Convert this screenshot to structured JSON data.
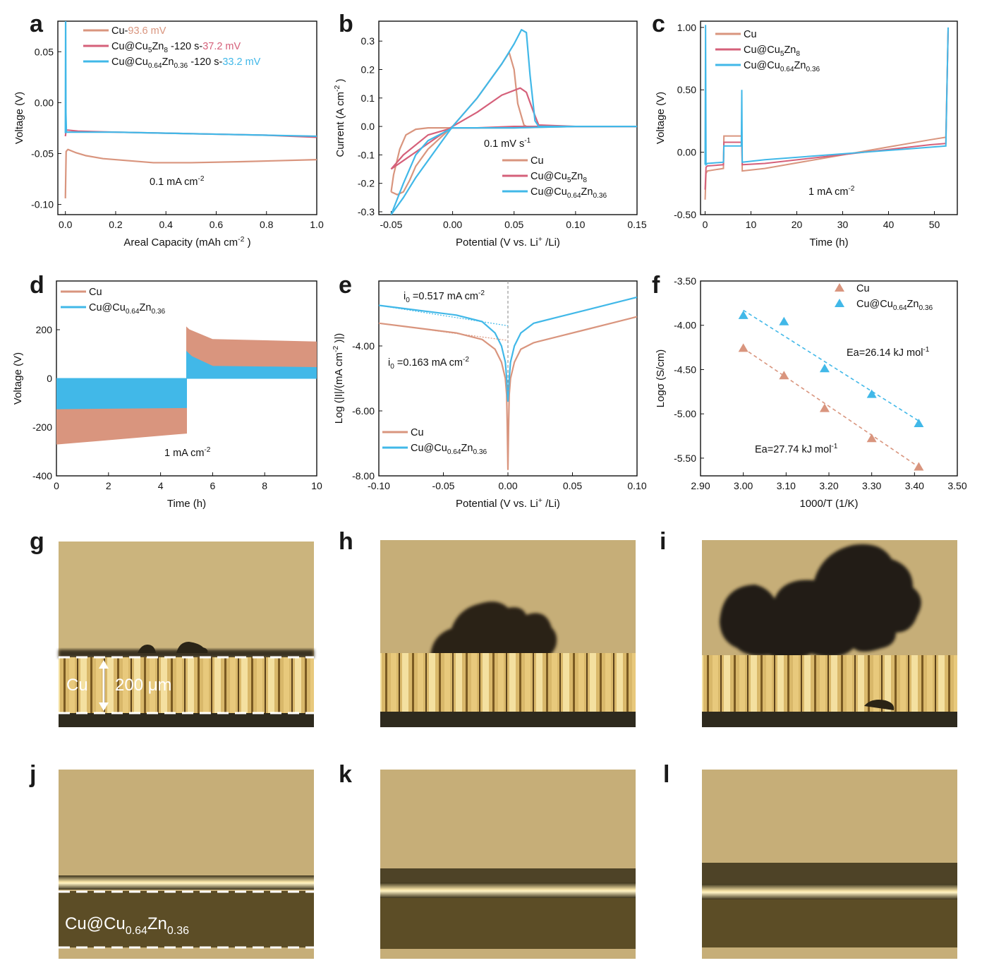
{
  "colors": {
    "cu": "#d9957e",
    "cu5zn8": "#d5607a",
    "cu064": "#41b8e8",
    "axis": "#111111",
    "guide": "#999999"
  },
  "chart_data": [
    {
      "id": "a",
      "panel_label": "a",
      "type": "line",
      "xlabel": "Areal Capacity (mAh cm-2)",
      "ylabel": "Voltage (V)",
      "xlim": [
        -0.03,
        1.0
      ],
      "ylim": [
        -0.11,
        0.08
      ],
      "xticks": [
        "0.0",
        "0.2",
        "0.4",
        "0.6",
        "0.8",
        "1.0"
      ],
      "xtick_values": [
        0,
        0.2,
        0.4,
        0.6,
        0.8,
        1.0
      ],
      "yticks": [
        "0.05",
        "0.00",
        "-0.05",
        "-0.10"
      ],
      "ytick_values": [
        0.05,
        0,
        -0.05,
        -0.1
      ],
      "annotation": "0.1 mA cm-2",
      "legend": [
        {
          "name": "Cu-",
          "value": "93.6 mV",
          "color": "#d9957e"
        },
        {
          "name": "Cu@Cu5Zn8-120 s-",
          "value": "37.2 mV",
          "color": "#d5607a"
        },
        {
          "name": "Cu@Cu0.64Zn0.36-120 s-",
          "value": "33.2 mV",
          "color": "#41b8e8"
        }
      ],
      "series": [
        {
          "name": "Cu",
          "color": "#d9957e",
          "x": [
            0,
            0.003,
            0.01,
            0.02,
            0.04,
            0.08,
            0.15,
            0.25,
            0.35,
            0.5,
            0.7,
            0.85,
            1.0
          ],
          "y": [
            -0.094,
            -0.048,
            -0.046,
            -0.047,
            -0.049,
            -0.052,
            -0.055,
            -0.057,
            -0.059,
            -0.059,
            -0.058,
            -0.057,
            -0.056
          ]
        },
        {
          "name": "Cu@Cu5Zn8",
          "color": "#d5607a",
          "x": [
            0,
            0.003,
            0.01,
            0.05,
            0.2,
            0.4,
            0.6,
            0.8,
            1.0
          ],
          "y": [
            -0.033,
            -0.027,
            -0.027,
            -0.028,
            -0.029,
            -0.03,
            -0.031,
            -0.032,
            -0.034
          ]
        },
        {
          "name": "Cu@Cu0.64Zn0.36",
          "color": "#41b8e8",
          "x": [
            0,
            0.001,
            0.002,
            0.004,
            0.01,
            0.05,
            0.2,
            0.4,
            0.6,
            0.8,
            1.0
          ],
          "y": [
            -0.03,
            0.085,
            -0.01,
            -0.029,
            -0.029,
            -0.029,
            -0.029,
            -0.03,
            -0.031,
            -0.032,
            -0.033
          ]
        }
      ]
    },
    {
      "id": "b",
      "panel_label": "b",
      "type": "line",
      "xlabel": "Potential (V vs. Li+/Li)",
      "ylabel": "Current (A cm-2)",
      "xlim": [
        -0.06,
        0.15
      ],
      "ylim": [
        -0.31,
        0.37
      ],
      "xticks": [
        "-0.05",
        "0.00",
        "0.05",
        "0.10",
        "0.15"
      ],
      "xtick_values": [
        -0.05,
        0,
        0.05,
        0.1,
        0.15
      ],
      "yticks": [
        "0.3",
        "0.2",
        "0.1",
        "0.0",
        "-0.1",
        "-0.2",
        "-0.3"
      ],
      "ytick_values": [
        0.3,
        0.2,
        0.1,
        0,
        -0.1,
        -0.2,
        -0.3
      ],
      "annotation": "0.1 mV s-1",
      "legend": [
        {
          "name": "Cu",
          "color": "#d9957e"
        },
        {
          "name": "Cu@Cu5Zn8",
          "color": "#d5607a"
        },
        {
          "name": "Cu@Cu0.64Zn0.36",
          "color": "#41b8e8"
        }
      ],
      "series": [
        {
          "name": "Cu",
          "color": "#d9957e",
          "x": [
            -0.05,
            -0.045,
            -0.04,
            -0.035,
            -0.03,
            -0.02,
            0,
            0.02,
            0.04,
            0.046,
            0.05,
            0.053,
            0.058,
            0.06,
            0.1,
            0.15,
            0.1,
            0.05,
            0.02,
            0,
            -0.02,
            -0.03,
            -0.038,
            -0.043,
            -0.048,
            -0.05
          ],
          "y": [
            -0.23,
            -0.24,
            -0.23,
            -0.19,
            -0.14,
            -0.08,
            0,
            0.1,
            0.22,
            0.26,
            0.2,
            0.08,
            0.005,
            0,
            0,
            0,
            0,
            -0.005,
            -0.005,
            -0.005,
            -0.005,
            -0.01,
            -0.03,
            -0.08,
            -0.17,
            -0.23
          ]
        },
        {
          "name": "Cu@Cu5Zn8",
          "color": "#d5607a",
          "x": [
            -0.05,
            -0.04,
            -0.03,
            -0.02,
            -0.01,
            0,
            0.02,
            0.04,
            0.055,
            0.06,
            0.065,
            0.07,
            0.1,
            0.15,
            0.1,
            0.05,
            0.02,
            0,
            -0.02,
            -0.04,
            -0.05
          ],
          "y": [
            -0.15,
            -0.12,
            -0.09,
            -0.06,
            -0.03,
            0,
            0.05,
            0.11,
            0.135,
            0.12,
            0.06,
            0.005,
            0,
            0,
            0,
            0,
            -0.005,
            -0.005,
            -0.03,
            -0.1,
            -0.15
          ]
        },
        {
          "name": "Cu@Cu0.64Zn0.36",
          "color": "#41b8e8",
          "x": [
            -0.05,
            -0.04,
            -0.03,
            -0.02,
            -0.01,
            0,
            0.02,
            0.04,
            0.05,
            0.056,
            0.06,
            0.063,
            0.067,
            0.07,
            0.1,
            0.15,
            0.1,
            0.05,
            0.02,
            0,
            -0.02,
            -0.03,
            -0.04,
            -0.05
          ],
          "y": [
            -0.31,
            -0.25,
            -0.18,
            -0.12,
            -0.06,
            0,
            0.1,
            0.22,
            0.29,
            0.34,
            0.33,
            0.18,
            0.02,
            0,
            0,
            0,
            0,
            -0.005,
            -0.005,
            -0.005,
            -0.05,
            -0.1,
            -0.2,
            -0.31
          ]
        }
      ]
    },
    {
      "id": "c",
      "panel_label": "c",
      "type": "line",
      "xlabel": "Time (h)",
      "ylabel": "Voltage (V)",
      "xlim": [
        -1,
        55
      ],
      "ylim": [
        -0.5,
        1.05
      ],
      "xticks": [
        "0",
        "10",
        "20",
        "30",
        "40",
        "50"
      ],
      "xtick_values": [
        0,
        10,
        20,
        30,
        40,
        50
      ],
      "yticks": [
        "1.00",
        "0.50",
        "0.00",
        "-0.50"
      ],
      "ytick_values": [
        1,
        0.5,
        0,
        -0.5
      ],
      "annotation": "1 mA cm-2",
      "legend": [
        {
          "name": "Cu",
          "color": "#d9957e"
        },
        {
          "name": "Cu@Cu5Zn8",
          "color": "#d5607a"
        },
        {
          "name": "Cu@Cu0.64Zn0.36",
          "color": "#41b8e8"
        }
      ],
      "series": [
        {
          "name": "Cu",
          "color": "#d9957e",
          "x": [
            0,
            0.2,
            0.5,
            4,
            4.1,
            8,
            8.1,
            13,
            13.1,
            49,
            49.1,
            52.5,
            53
          ],
          "y": [
            -0.38,
            -0.17,
            -0.15,
            -0.13,
            0.13,
            0.13,
            -0.15,
            -0.13,
            -0.13,
            -0.13,
            0.1,
            0.12,
            0.98
          ]
        },
        {
          "name": "Cu@Cu5Zn8",
          "color": "#d5607a",
          "x": [
            0,
            0.2,
            0.5,
            4,
            4.1,
            8,
            8.1,
            13,
            13.1,
            49,
            49.1,
            52.5,
            53
          ],
          "y": [
            -0.3,
            -0.12,
            -0.11,
            -0.1,
            0.08,
            0.08,
            -0.1,
            -0.09,
            -0.09,
            -0.09,
            0.06,
            0.07,
            0.98
          ]
        },
        {
          "name": "Cu@Cu0.64Zn0.36",
          "color": "#41b8e8",
          "x": [
            0,
            0.1,
            0.2,
            0.5,
            4,
            4.1,
            7.9,
            8,
            8.1,
            13,
            13.1,
            49,
            49.1,
            52.5,
            53
          ],
          "y": [
            -0.1,
            1.02,
            -0.1,
            -0.09,
            -0.08,
            0.05,
            0.05,
            0.5,
            -0.08,
            -0.06,
            -0.06,
            -0.06,
            0.04,
            0.05,
            1.0
          ]
        }
      ]
    },
    {
      "id": "d",
      "panel_label": "d",
      "type": "area",
      "xlabel": "Time (h)",
      "ylabel": "Voltage (V)",
      "xlim": [
        0,
        10
      ],
      "ylim": [
        -400,
        400
      ],
      "xticks": [
        "0",
        "2",
        "4",
        "6",
        "8",
        "10"
      ],
      "xtick_values": [
        0,
        2,
        4,
        6,
        8,
        10
      ],
      "yticks": [
        "200",
        "0",
        "-200",
        "-400"
      ],
      "ytick_values": [
        200,
        0,
        -200,
        -400
      ],
      "annotation": "1 mA cm-2",
      "legend": [
        {
          "name": "Cu",
          "color": "#d9957e"
        },
        {
          "name": "Cu@Cu0.64Zn0.36",
          "color": "#41b8e8"
        }
      ],
      "series": [
        {
          "name": "Cu",
          "color": "#d9957e",
          "x": [
            0,
            5,
            5,
            5.1,
            6,
            10
          ],
          "y": [
            -270,
            -225,
            210,
            200,
            160,
            150
          ]
        },
        {
          "name": "Cu@Cu0.64Zn0.36",
          "color": "#41b8e8",
          "x": [
            0,
            5,
            5,
            5.2,
            6,
            10
          ],
          "y": [
            -125,
            -120,
            110,
            90,
            50,
            45
          ]
        }
      ]
    },
    {
      "id": "e",
      "panel_label": "e",
      "type": "line",
      "xlabel": "Potential (V vs. Li+/Li)",
      "ylabel": "Log (|I|/(mA cm-2)|)",
      "xlim": [
        -0.1,
        0.1
      ],
      "ylim": [
        -8,
        -2
      ],
      "xticks": [
        "-0.10",
        "-0.05",
        "0.00",
        "0.05",
        "0.10"
      ],
      "xtick_values": [
        -0.1,
        -0.05,
        0,
        0.05,
        0.1
      ],
      "yticks": [
        "-4.00",
        "-6.00",
        "-8.00"
      ],
      "ytick_values": [
        -4,
        -6,
        -8
      ],
      "annotations": [
        {
          "label": "i0=0.517 mA cm-2",
          "color": "#41b8e8"
        },
        {
          "label": "i0=0.163 mA cm-2",
          "color": "#d9957e"
        }
      ],
      "legend": [
        {
          "name": "Cu",
          "color": "#d9957e"
        },
        {
          "name": "Cu@Cu0.64Zn0.36",
          "color": "#41b8e8"
        }
      ],
      "series": [
        {
          "name": "Cu",
          "color": "#d9957e",
          "x": [
            -0.1,
            -0.08,
            -0.06,
            -0.04,
            -0.02,
            -0.01,
            -0.005,
            -0.002,
            -0.001,
            -0.0005,
            0,
            0.0005,
            0.001,
            0.002,
            0.005,
            0.01,
            0.02,
            0.04,
            0.06,
            0.08,
            0.1
          ],
          "y": [
            -3.3,
            -3.4,
            -3.5,
            -3.6,
            -3.8,
            -4.1,
            -4.5,
            -5,
            -5.5,
            -6.5,
            -7.8,
            -6.5,
            -5.5,
            -5,
            -4.5,
            -4.1,
            -3.9,
            -3.7,
            -3.5,
            -3.3,
            -3.1
          ]
        },
        {
          "name": "Cu@Cu0.64Zn0.36",
          "color": "#41b8e8",
          "x": [
            -0.1,
            -0.08,
            -0.06,
            -0.04,
            -0.02,
            -0.01,
            -0.005,
            -0.002,
            -0.001,
            0,
            0.001,
            0.002,
            0.005,
            0.01,
            0.02,
            0.04,
            0.06,
            0.08,
            0.1
          ],
          "y": [
            -2.75,
            -2.85,
            -2.95,
            -3.05,
            -3.25,
            -3.6,
            -4,
            -4.5,
            -5,
            -5.7,
            -5,
            -4.5,
            -4,
            -3.6,
            -3.3,
            -3.1,
            -2.9,
            -2.7,
            -2.5
          ]
        }
      ]
    },
    {
      "id": "f",
      "panel_label": "f",
      "type": "scatter",
      "xlabel": "1000/T (1/K)",
      "ylabel": "Logσ (S/cm)",
      "xlim": [
        2.9,
        3.5
      ],
      "ylim": [
        -5.7,
        -3.5
      ],
      "xticks": [
        "2.90",
        "3.00",
        "3.10",
        "3.20",
        "3.30",
        "3.40",
        "3.50"
      ],
      "xtick_values": [
        2.9,
        3,
        3.1,
        3.2,
        3.3,
        3.4,
        3.5
      ],
      "yticks": [
        "-3.50",
        "-4.00",
        "-4.50",
        "-5.00",
        "-5.50"
      ],
      "ytick_values": [
        -3.5,
        -4,
        -4.5,
        -5,
        -5.5
      ],
      "annotations": [
        {
          "label": "Ea=26.14 kJ mol-1",
          "color": "#41b8e8"
        },
        {
          "label": "Ea=27.74 kJ mol-1",
          "color": "#d9957e"
        }
      ],
      "legend": [
        {
          "name": "Cu",
          "color": "#d9957e"
        },
        {
          "name": "Cu@Cu0.64Zn0.36",
          "color": "#41b8e8"
        }
      ],
      "series": [
        {
          "name": "Cu",
          "color": "#d9957e",
          "x": [
            3.0,
            3.095,
            3.19,
            3.3,
            3.41
          ],
          "y": [
            -4.26,
            -4.57,
            -4.94,
            -5.28,
            -5.6
          ],
          "fit": [
            [
              3.0,
              -4.26
            ],
            [
              3.41,
              -5.6
            ]
          ]
        },
        {
          "name": "Cu@Cu0.64Zn0.36",
          "color": "#41b8e8",
          "x": [
            3.0,
            3.095,
            3.19,
            3.3,
            3.41
          ],
          "y": [
            -3.89,
            -3.96,
            -4.49,
            -4.78,
            -5.11
          ],
          "fit": [
            [
              3.0,
              -3.83
            ],
            [
              3.41,
              -5.08
            ]
          ]
        }
      ]
    }
  ],
  "images": {
    "panel_labels": [
      "g",
      "h",
      "i",
      "j",
      "k",
      "l"
    ],
    "g_label": "Cu",
    "g_scale": "200 μm",
    "j_label_main": "Cu@Cu",
    "j_sub1": "0.64",
    "j_mid": "Zn",
    "j_sub2": "0.36"
  }
}
